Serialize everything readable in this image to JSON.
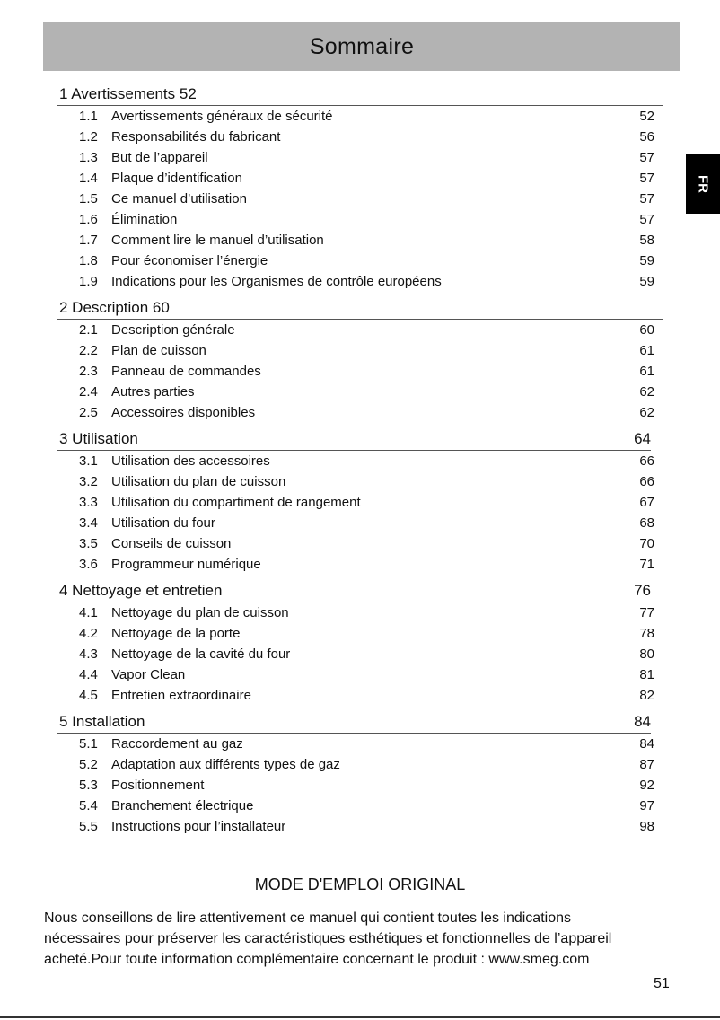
{
  "header": {
    "title": "Sommaire"
  },
  "lang_tab": "FR",
  "sections": [
    {
      "heading": "1 Avertissements 52",
      "page": "",
      "items": [
        {
          "num": "1.1",
          "title": "Avertissements généraux de sécurité",
          "page": "52"
        },
        {
          "num": "1.2",
          "title": "Responsabilités du fabricant",
          "page": "56"
        },
        {
          "num": "1.3",
          "title": "But de l’appareil",
          "page": "57"
        },
        {
          "num": "1.4",
          "title": "Plaque d’identification",
          "page": "57"
        },
        {
          "num": "1.5",
          "title": "Ce manuel d’utilisation",
          "page": "57"
        },
        {
          "num": "1.6",
          "title": "Élimination",
          "page": "57"
        },
        {
          "num": "1.7",
          "title": "Comment lire le manuel d’utilisation",
          "page": "58"
        },
        {
          "num": "1.8",
          "title": "Pour économiser l’énergie",
          "page": "59"
        },
        {
          "num": "1.9",
          "title": "Indications pour les Organismes de contrôle européens",
          "page": "59"
        }
      ]
    },
    {
      "heading": "2 Description 60",
      "page": "",
      "items": [
        {
          "num": "2.1",
          "title": "Description générale",
          "page": "60"
        },
        {
          "num": "2.2",
          "title": "Plan de cuisson",
          "page": "61"
        },
        {
          "num": "2.3",
          "title": "Panneau de commandes",
          "page": "61"
        },
        {
          "num": "2.4",
          "title": "Autres parties",
          "page": "62"
        },
        {
          "num": "2.5",
          "title": "Accessoires disponibles",
          "page": "62"
        }
      ]
    },
    {
      "heading": "3 Utilisation",
      "page": "64",
      "items": [
        {
          "num": "3.1",
          "title": "Utilisation des accessoires",
          "page": "66"
        },
        {
          "num": "3.2",
          "title": "Utilisation du plan de cuisson",
          "page": "66"
        },
        {
          "num": "3.3",
          "title": "Utilisation du compartiment de rangement",
          "page": "67"
        },
        {
          "num": "3.4",
          "title": "Utilisation du four",
          "page": "68"
        },
        {
          "num": "3.5",
          "title": "Conseils de cuisson",
          "page": "70"
        },
        {
          "num": "3.6",
          "title": "Programmeur numérique",
          "page": "71"
        }
      ]
    },
    {
      "heading": "4 Nettoyage et entretien",
      "page": "76",
      "items": [
        {
          "num": "4.1",
          "title": "Nettoyage du plan de cuisson",
          "page": "77"
        },
        {
          "num": "4.2",
          "title": "Nettoyage de la porte",
          "page": "78"
        },
        {
          "num": "4.3",
          "title": "Nettoyage de la cavité du four",
          "page": "80"
        },
        {
          "num": "4.4",
          "title": "Vapor Clean",
          "page": "81"
        },
        {
          "num": "4.5",
          "title": "Entretien extraordinaire",
          "page": "82"
        }
      ]
    },
    {
      "heading": "5 Installation",
      "page": "84",
      "items": [
        {
          "num": "5.1",
          "title": "Raccordement au gaz",
          "page": "84"
        },
        {
          "num": "5.2",
          "title": "Adaptation aux différents types de gaz",
          "page": "87"
        },
        {
          "num": "5.3",
          "title": "Positionnement",
          "page": "92"
        },
        {
          "num": "5.4",
          "title": "Branchement électrique",
          "page": "97"
        },
        {
          "num": "5.5",
          "title": "Instructions pour l’installateur",
          "page": "98"
        }
      ]
    }
  ],
  "mode_title": "MODE D'EMPLOI ORIGINAL",
  "intro_lines": [
    "Nous conseillons de lire attentivement ce manuel qui contient toutes les indications",
    "nécessaires pour préserver les caractéristiques esthétiques et fonctionnelles de l’appareil",
    "acheté.Pour toute information complémentaire concernant le produit : www.smeg.com"
  ],
  "page_number": "51"
}
